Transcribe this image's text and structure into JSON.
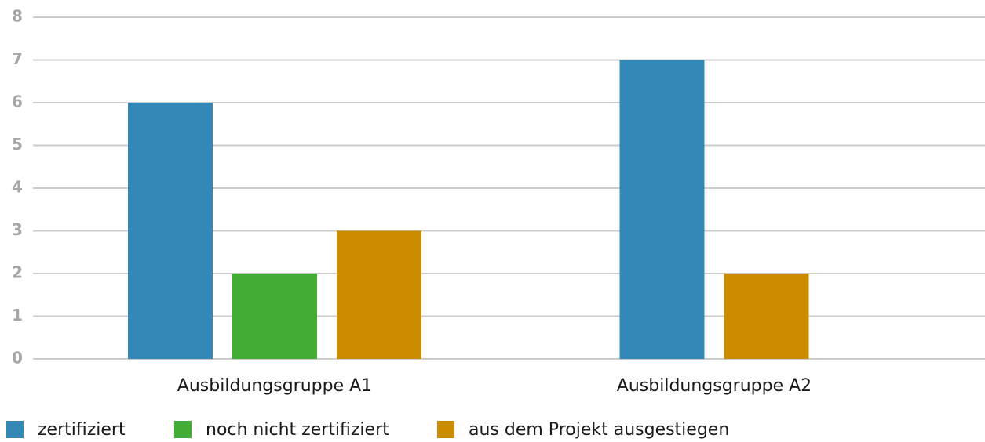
{
  "chart_data": {
    "type": "bar",
    "categories": [
      "Ausbildungsgruppe A1",
      "Ausbildungsgruppe A2"
    ],
    "series": [
      {
        "name": "zertifiziert",
        "color": "#3288b6",
        "values": [
          6,
          7
        ]
      },
      {
        "name": "noch nicht zertifiziert",
        "color": "#41ad35",
        "values": [
          2,
          null
        ]
      },
      {
        "name": "aus dem Projekt ausgestiegen",
        "color": "#cc8c00",
        "values": [
          3,
          2
        ]
      }
    ],
    "ylim": [
      0,
      8
    ],
    "yticks": [
      0,
      1,
      2,
      3,
      4,
      5,
      6,
      7,
      8
    ],
    "grid": true,
    "legend": "bottom"
  }
}
